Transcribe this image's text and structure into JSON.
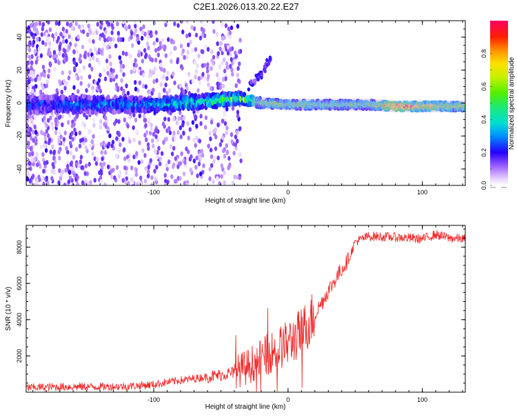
{
  "title": "C2E1.2026.013.20.22.E27",
  "chart_data": [
    {
      "type": "heatmap",
      "title": "C2E1.2026.013.20.22.E27",
      "xlabel": "Height of straight line (km)",
      "ylabel": "Frequency (Hz)",
      "xlim": [
        -195,
        132
      ],
      "ylim": [
        -50,
        50
      ],
      "x_ticks": [
        -100,
        0,
        100
      ],
      "x_tick_labels": [
        "-100",
        "0",
        "100"
      ],
      "y_ticks": [
        -40,
        -20,
        0,
        20,
        40
      ],
      "y_tick_labels": [
        "-40",
        "-20",
        "0",
        "20",
        "40"
      ],
      "colorbar": {
        "label": "Normalized spectral amplitude",
        "range": [
          0,
          1
        ],
        "ticks": [
          0.0,
          0.2,
          0.4,
          0.6,
          0.8
        ],
        "tick_labels": [
          "0.0",
          "0.2",
          "0.4",
          "0.6",
          "0.8"
        ]
      },
      "ridge": [
        {
          "x": -190,
          "center": -1,
          "halfwidth": 5,
          "amplitude": 0.22
        },
        {
          "x": -150,
          "center": -1,
          "halfwidth": 5,
          "amplitude": 0.25
        },
        {
          "x": -100,
          "center": -1,
          "halfwidth": 4,
          "amplitude": 0.3
        },
        {
          "x": -60,
          "center": 1,
          "halfwidth": 4,
          "amplitude": 0.4
        },
        {
          "x": -35,
          "center": 3,
          "halfwidth": 3,
          "amplitude": 0.5
        },
        {
          "x": -20,
          "center": 0,
          "halfwidth": 2.5,
          "amplitude": 0.6
        },
        {
          "x": 0,
          "center": -1,
          "halfwidth": 2.5,
          "amplitude": 0.55
        },
        {
          "x": 60,
          "center": -1,
          "halfwidth": 2.5,
          "amplitude": 0.5
        },
        {
          "x": 80,
          "center": -2,
          "halfwidth": 2.5,
          "amplitude": 0.95
        },
        {
          "x": 132,
          "center": -2,
          "halfwidth": 2.5,
          "amplitude": 0.6
        }
      ],
      "branch": [
        {
          "x": -30,
          "center": 10
        },
        {
          "x": -20,
          "center": 17
        },
        {
          "x": -15,
          "center": 25
        },
        {
          "x": -13,
          "center": 28
        }
      ]
    },
    {
      "type": "line",
      "xlabel": "Height of straight line (km)",
      "ylabel": "SNR (10 * v/v)",
      "xlim": [
        -195,
        132
      ],
      "ylim": [
        0,
        9200
      ],
      "x_ticks": [
        -100,
        0,
        100
      ],
      "x_tick_labels": [
        "-100",
        "0",
        "100"
      ],
      "y_ticks": [
        2000,
        4000,
        6000,
        8000
      ],
      "y_tick_labels": [
        "2000",
        "4000",
        "6000",
        "8000"
      ],
      "series": [
        {
          "name": "SNR",
          "color": "#ee2a2a",
          "x": [
            -195,
            -180,
            -160,
            -140,
            -120,
            -100,
            -90,
            -80,
            -70,
            -60,
            -50,
            -40,
            -30,
            -20,
            -10,
            0,
            10,
            20,
            30,
            40,
            45,
            50,
            60,
            80,
            100,
            110,
            120,
            132
          ],
          "y": [
            250,
            280,
            300,
            300,
            320,
            420,
            550,
            650,
            750,
            850,
            950,
            1100,
            1400,
            1900,
            2300,
            2700,
            3300,
            4300,
            5600,
            6800,
            7300,
            8300,
            8600,
            8550,
            8450,
            8700,
            8500,
            8450
          ]
        }
      ]
    }
  ]
}
